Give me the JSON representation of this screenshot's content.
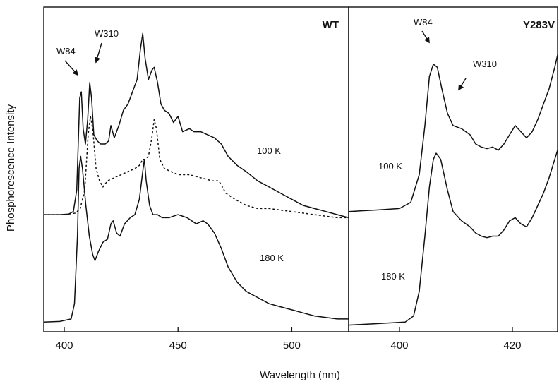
{
  "chart_data": {
    "type": "line",
    "ylabel": "Phosphorescence Intensity",
    "xlabel": "Wavelength (nm)",
    "grid": false,
    "panels": [
      {
        "title": "WT",
        "xlim": [
          391,
          525
        ],
        "xticks": [
          400,
          450,
          500
        ],
        "ylim": [
          0,
          1
        ],
        "series": [
          {
            "name": "100 K",
            "style": "solid",
            "points": [
              [
                391,
                0.37
              ],
              [
                398,
                0.37
              ],
              [
                402,
                0.372
              ],
              [
                404,
                0.38
              ],
              [
                405.5,
                0.45
              ],
              [
                406.8,
                0.75
              ],
              [
                407.5,
                0.77
              ],
              [
                408.3,
                0.65
              ],
              [
                409.3,
                0.6
              ],
              [
                410.3,
                0.68
              ],
              [
                411.2,
                0.8
              ],
              [
                412,
                0.75
              ],
              [
                413,
                0.63
              ],
              [
                414.5,
                0.61
              ],
              [
                416,
                0.6
              ],
              [
                418,
                0.6
              ],
              [
                419.5,
                0.61
              ],
              [
                420.5,
                0.66
              ],
              [
                422,
                0.62
              ],
              [
                424,
                0.66
              ],
              [
                426,
                0.71
              ],
              [
                428,
                0.73
              ],
              [
                430,
                0.77
              ],
              [
                432,
                0.81
              ],
              [
                433.5,
                0.91
              ],
              [
                434.5,
                0.96
              ],
              [
                435.5,
                0.88
              ],
              [
                437,
                0.81
              ],
              [
                438.5,
                0.84
              ],
              [
                439.5,
                0.85
              ],
              [
                441,
                0.8
              ],
              [
                442.5,
                0.73
              ],
              [
                444,
                0.71
              ],
              [
                446,
                0.7
              ],
              [
                448,
                0.67
              ],
              [
                450,
                0.69
              ],
              [
                452,
                0.64
              ],
              [
                455,
                0.65
              ],
              [
                457,
                0.64
              ],
              [
                460,
                0.64
              ],
              [
                463,
                0.63
              ],
              [
                466,
                0.62
              ],
              [
                469,
                0.6
              ],
              [
                472,
                0.56
              ],
              [
                476,
                0.53
              ],
              [
                480,
                0.51
              ],
              [
                485,
                0.48
              ],
              [
                490,
                0.46
              ],
              [
                495,
                0.44
              ],
              [
                500,
                0.42
              ],
              [
                505,
                0.4
              ],
              [
                510,
                0.39
              ],
              [
                515,
                0.38
              ],
              [
                520,
                0.37
              ],
              [
                525,
                0.36
              ]
            ]
          },
          {
            "name": "",
            "style": "dotted",
            "points": [
              [
                391,
                0.37
              ],
              [
                400,
                0.37
              ],
              [
                405,
                0.375
              ],
              [
                407,
                0.39
              ],
              [
                409,
                0.45
              ],
              [
                410.5,
                0.63
              ],
              [
                411.5,
                0.69
              ],
              [
                412.5,
                0.65
              ],
              [
                414,
                0.52
              ],
              [
                415.5,
                0.48
              ],
              [
                417,
                0.46
              ],
              [
                419,
                0.48
              ],
              [
                422,
                0.49
              ],
              [
                425,
                0.5
              ],
              [
                428,
                0.51
              ],
              [
                431,
                0.52
              ],
              [
                433,
                0.53
              ],
              [
                434.5,
                0.55
              ],
              [
                435.5,
                0.55
              ],
              [
                437,
                0.56
              ],
              [
                438.5,
                0.62
              ],
              [
                439.5,
                0.68
              ],
              [
                440.5,
                0.65
              ],
              [
                442,
                0.55
              ],
              [
                444,
                0.52
              ],
              [
                447,
                0.51
              ],
              [
                450,
                0.5
              ],
              [
                455,
                0.5
              ],
              [
                460,
                0.49
              ],
              [
                465,
                0.48
              ],
              [
                468,
                0.48
              ],
              [
                471,
                0.44
              ],
              [
                475,
                0.42
              ],
              [
                480,
                0.4
              ],
              [
                485,
                0.39
              ],
              [
                490,
                0.39
              ],
              [
                500,
                0.38
              ],
              [
                510,
                0.37
              ],
              [
                520,
                0.36
              ],
              [
                525,
                0.36
              ]
            ]
          },
          {
            "name": "180 K",
            "style": "solid",
            "points": [
              [
                391,
                0.02
              ],
              [
                398,
                0.022
              ],
              [
                403,
                0.03
              ],
              [
                404.5,
                0.08
              ],
              [
                405.8,
                0.3
              ],
              [
                406.5,
                0.52
              ],
              [
                407.2,
                0.56
              ],
              [
                408,
                0.52
              ],
              [
                409.5,
                0.4
              ],
              [
                411,
                0.3
              ],
              [
                412.5,
                0.24
              ],
              [
                413.5,
                0.22
              ],
              [
                415,
                0.25
              ],
              [
                417,
                0.28
              ],
              [
                419,
                0.29
              ],
              [
                420.5,
                0.34
              ],
              [
                421.5,
                0.35
              ],
              [
                423,
                0.31
              ],
              [
                424.5,
                0.3
              ],
              [
                426.5,
                0.34
              ],
              [
                429,
                0.36
              ],
              [
                431,
                0.37
              ],
              [
                433,
                0.42
              ],
              [
                434.5,
                0.51
              ],
              [
                435.2,
                0.55
              ],
              [
                436,
                0.48
              ],
              [
                437.5,
                0.4
              ],
              [
                439,
                0.37
              ],
              [
                441,
                0.37
              ],
              [
                443,
                0.36
              ],
              [
                446,
                0.36
              ],
              [
                450,
                0.37
              ],
              [
                454,
                0.36
              ],
              [
                458,
                0.34
              ],
              [
                461,
                0.35
              ],
              [
                463,
                0.34
              ],
              [
                466,
                0.31
              ],
              [
                469,
                0.26
              ],
              [
                472,
                0.2
              ],
              [
                476,
                0.15
              ],
              [
                480,
                0.12
              ],
              [
                485,
                0.1
              ],
              [
                490,
                0.08
              ],
              [
                495,
                0.07
              ],
              [
                500,
                0.06
              ],
              [
                505,
                0.05
              ],
              [
                510,
                0.04
              ],
              [
                515,
                0.035
              ],
              [
                520,
                0.03
              ],
              [
                525,
                0.03
              ]
            ]
          }
        ],
        "annotations": [
          "W84",
          "W310",
          "100 K",
          "180 K"
        ]
      },
      {
        "title": "Y283V",
        "xlim": [
          391,
          428
        ],
        "xticks": [
          400,
          420
        ],
        "ylim": [
          0,
          1
        ],
        "series": [
          {
            "name": "100 K",
            "style": "solid",
            "points": [
              [
                391,
                0.38
              ],
              [
                396,
                0.385
              ],
              [
                400,
                0.39
              ],
              [
                402,
                0.41
              ],
              [
                403.5,
                0.5
              ],
              [
                404.5,
                0.66
              ],
              [
                405.3,
                0.82
              ],
              [
                406,
                0.86
              ],
              [
                406.7,
                0.85
              ],
              [
                407.5,
                0.78
              ],
              [
                408.5,
                0.7
              ],
              [
                409.5,
                0.66
              ],
              [
                411,
                0.65
              ],
              [
                412.5,
                0.63
              ],
              [
                413.5,
                0.6
              ],
              [
                414.5,
                0.59
              ],
              [
                415.5,
                0.585
              ],
              [
                416.5,
                0.59
              ],
              [
                417.5,
                0.58
              ],
              [
                418.5,
                0.6
              ],
              [
                419.5,
                0.63
              ],
              [
                420.5,
                0.66
              ],
              [
                421.5,
                0.64
              ],
              [
                422.5,
                0.62
              ],
              [
                423.5,
                0.64
              ],
              [
                424.5,
                0.68
              ],
              [
                425.5,
                0.73
              ],
              [
                426.5,
                0.78
              ],
              [
                427.5,
                0.85
              ],
              [
                428,
                0.89
              ]
            ]
          },
          {
            "name": "180 K",
            "style": "solid",
            "points": [
              [
                391,
                0.01
              ],
              [
                396,
                0.015
              ],
              [
                401,
                0.02
              ],
              [
                402.5,
                0.04
              ],
              [
                403.5,
                0.12
              ],
              [
                404.5,
                0.3
              ],
              [
                405.3,
                0.46
              ],
              [
                406,
                0.55
              ],
              [
                406.5,
                0.57
              ],
              [
                407.3,
                0.55
              ],
              [
                408.5,
                0.45
              ],
              [
                409.5,
                0.38
              ],
              [
                411,
                0.35
              ],
              [
                412.5,
                0.33
              ],
              [
                413.5,
                0.31
              ],
              [
                414.5,
                0.3
              ],
              [
                415.5,
                0.295
              ],
              [
                416.5,
                0.3
              ],
              [
                417.5,
                0.3
              ],
              [
                418.5,
                0.32
              ],
              [
                419.5,
                0.35
              ],
              [
                420.5,
                0.36
              ],
              [
                421.5,
                0.34
              ],
              [
                422.5,
                0.33
              ],
              [
                423.5,
                0.36
              ],
              [
                424.5,
                0.4
              ],
              [
                425.5,
                0.44
              ],
              [
                426.5,
                0.49
              ],
              [
                427.5,
                0.55
              ],
              [
                428,
                0.58
              ]
            ]
          }
        ],
        "annotations": [
          "W84",
          "W310",
          "100 K",
          "180 K"
        ]
      }
    ]
  }
}
